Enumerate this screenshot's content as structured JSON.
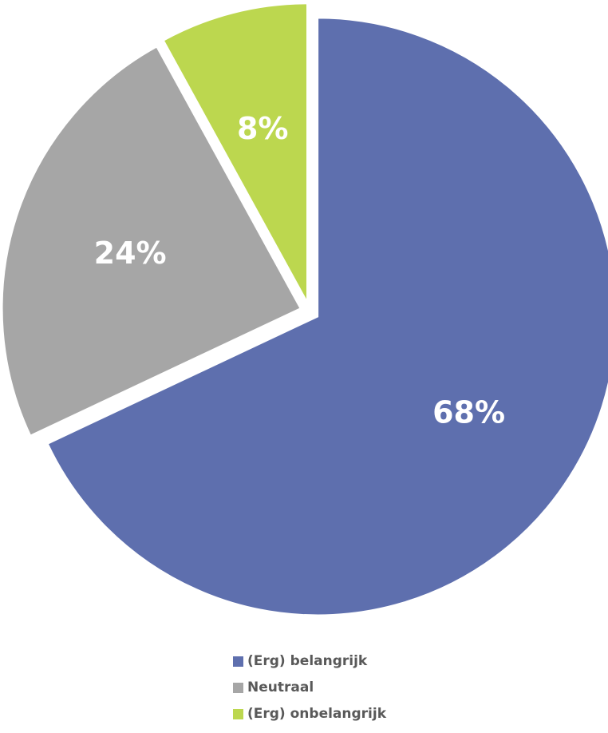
{
  "chart_data": {
    "type": "pie",
    "title": "",
    "unit": "%",
    "legend_position": "bottom",
    "slices": [
      {
        "label": "(Erg) belangrijk",
        "value": 68,
        "display": "68%",
        "color": "#5e6fae"
      },
      {
        "label": "Neutraal",
        "value": 24,
        "display": "24%",
        "color": "#a6a6a6"
      },
      {
        "label": "(Erg) onbelangrijk",
        "value": 8,
        "display": "8%",
        "color": "#bcd74f"
      }
    ]
  }
}
